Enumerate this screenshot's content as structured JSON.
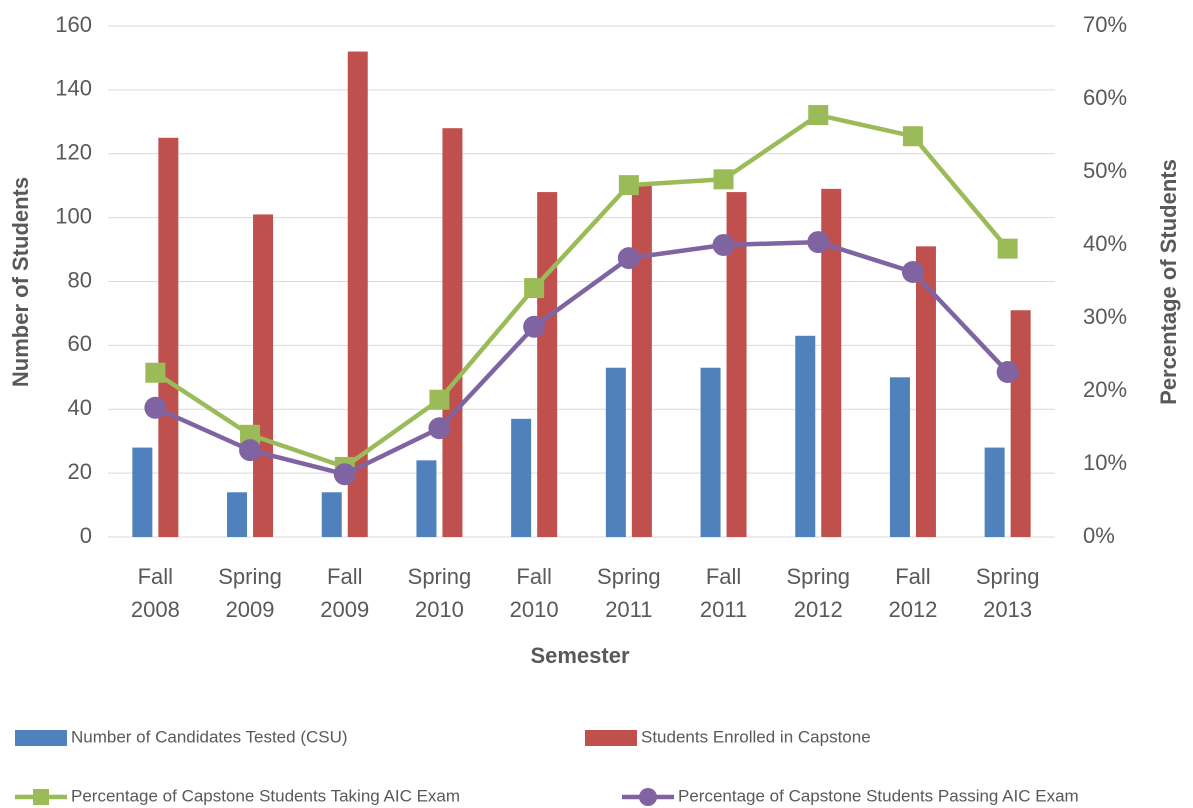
{
  "chart_data": {
    "type": "bar-line",
    "x_label": "Semester",
    "y_label": "Number of Students",
    "y2_label": "Percentage of Students",
    "categories": [
      "Fall 2008",
      "Spring 2009",
      "Fall 2009",
      "Spring 2010",
      "Fall 2010",
      "Spring 2011",
      "Fall 2011",
      "Spring 2012",
      "Fall 2012",
      "Spring 2013"
    ],
    "series": [
      {
        "name": "Number of Candidates Tested (CSU)",
        "type": "bar",
        "color": "#4f81bd",
        "values": [
          28,
          14,
          14,
          24,
          37,
          53,
          53,
          63,
          50,
          28
        ]
      },
      {
        "name": "Students Enrolled in Capstone",
        "type": "bar",
        "color": "#c0504d",
        "values": [
          125,
          101,
          152,
          128,
          108,
          110,
          108,
          109,
          91,
          71
        ]
      },
      {
        "name": "Percentage of Capstone Students Taking AIC Exam",
        "type": "line",
        "marker": "square",
        "axis": "y2",
        "color": "#9bbb59",
        "values": [
          22.5,
          14.0,
          9.6,
          18.8,
          34.1,
          48.2,
          49.0,
          57.8,
          54.9,
          39.5
        ]
      },
      {
        "name": "Percentage of Capstone Students Passing AIC Exam",
        "type": "line",
        "marker": "circle",
        "axis": "y2",
        "color": "#8064a2",
        "values": [
          17.7,
          11.9,
          8.6,
          14.9,
          28.8,
          38.2,
          40.0,
          40.4,
          36.3,
          22.6
        ]
      }
    ],
    "ylim": [
      0,
      160
    ],
    "yticks": [
      0,
      20,
      40,
      60,
      80,
      100,
      120,
      140,
      160
    ],
    "y2lim": [
      0,
      70
    ],
    "y2ticks": [
      {
        "value": 0,
        "label": "0%"
      },
      {
        "value": 10,
        "label": "10%"
      },
      {
        "value": 20,
        "label": "20%"
      },
      {
        "value": 30,
        "label": "30%"
      },
      {
        "value": 40,
        "label": "40%"
      },
      {
        "value": 50,
        "label": "50%"
      },
      {
        "value": 60,
        "label": "60%"
      },
      {
        "value": 70,
        "label": "70%"
      }
    ],
    "grid": true,
    "legend": "bottom"
  }
}
